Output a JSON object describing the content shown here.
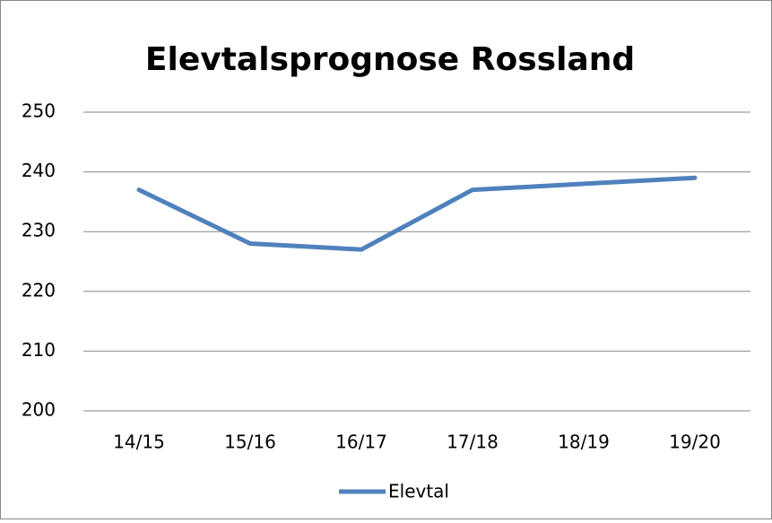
{
  "chart_data": {
    "type": "line",
    "title": "Elevtalsprognose Rossland",
    "categories": [
      "14/15",
      "15/16",
      "16/17",
      "17/18",
      "18/19",
      "19/20"
    ],
    "series": [
      {
        "name": "Elevtal",
        "color": "#4f81bd",
        "values": [
          237,
          228,
          227,
          237,
          238,
          239
        ]
      }
    ],
    "ylim": [
      200,
      250
    ],
    "yticks": [
      200,
      210,
      220,
      230,
      240,
      250
    ],
    "grid": true,
    "legend": "bottom"
  }
}
